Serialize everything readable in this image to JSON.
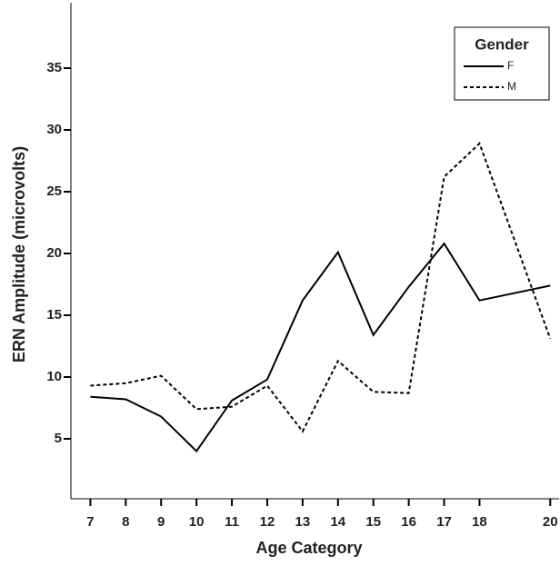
{
  "chart_data": {
    "type": "line",
    "x_label": "Age Category",
    "y_label": "ERN Amplitude (microvolts)",
    "x": [
      7,
      8,
      9,
      10,
      11,
      12,
      13,
      14,
      15,
      16,
      17,
      18,
      20
    ],
    "series": [
      {
        "name": "F",
        "color": "#000000",
        "dash": "solid",
        "values": [
          8.4,
          8.2,
          6.8,
          4.0,
          8.1,
          9.8,
          16.2,
          20.1,
          13.4,
          17.3,
          20.8,
          16.2,
          17.4
        ]
      },
      {
        "name": "M",
        "color": "#000000",
        "dash": "dashed",
        "values": [
          9.3,
          9.5,
          10.1,
          7.4,
          7.6,
          9.3,
          5.6,
          11.3,
          8.8,
          8.7,
          26.2,
          28.9,
          13.1
        ]
      }
    ],
    "legend_title": "Gender",
    "legend_position": "upper right",
    "xlim": [
      6.45,
      20.25
    ],
    "xticks": [
      7,
      8,
      9,
      10,
      11,
      12,
      13,
      14,
      15,
      16,
      17,
      18,
      20
    ],
    "ylim": [
      0,
      40
    ],
    "yticks": [
      5,
      10,
      15,
      20,
      25,
      30,
      35
    ],
    "grid": false
  }
}
